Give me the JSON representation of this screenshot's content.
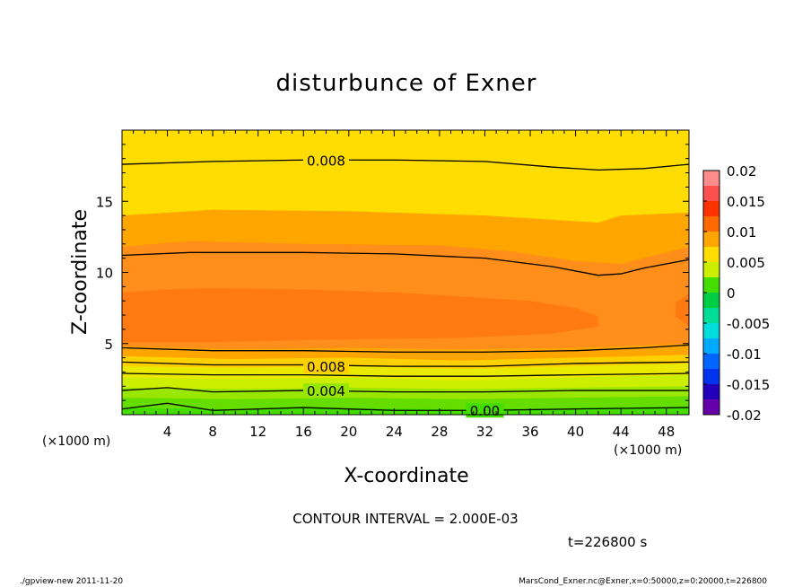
{
  "chart_data": {
    "type": "contour",
    "title": "disturbunce of Exner",
    "xlabel": "X-coordinate",
    "ylabel": "Z-coordinate",
    "x_unit": "(×1000 m)",
    "y_unit": "(×1000 m)",
    "xlim": [
      0,
      50
    ],
    "ylim": [
      0,
      20
    ],
    "x_ticks": [
      4,
      8,
      12,
      16,
      20,
      24,
      28,
      32,
      36,
      40,
      44,
      48
    ],
    "y_ticks": [
      5,
      10,
      15
    ],
    "contour_interval": "CONTOUR INTERVAL = 2.000E-03",
    "time_label": "t=226800 s",
    "colorbar": {
      "min": -0.02,
      "max": 0.02,
      "labels": [
        "0.02",
        "0.015",
        "0.01",
        "0.005",
        "0",
        "-0.005",
        "-0.01",
        "-0.015",
        "-0.02"
      ],
      "bands": [
        {
          "lo": 0.0175,
          "hi": 0.02,
          "color": "#ff8c8c"
        },
        {
          "lo": 0.015,
          "hi": 0.0175,
          "color": "#ff5050"
        },
        {
          "lo": 0.0125,
          "hi": 0.015,
          "color": "#ff3300"
        },
        {
          "lo": 0.01,
          "hi": 0.0125,
          "color": "#ff6a00"
        },
        {
          "lo": 0.0075,
          "hi": 0.01,
          "color": "#ffa500"
        },
        {
          "lo": 0.005,
          "hi": 0.0075,
          "color": "#ffdd00"
        },
        {
          "lo": 0.0025,
          "hi": 0.005,
          "color": "#ccee00"
        },
        {
          "lo": 0.0,
          "hi": 0.0025,
          "color": "#44dd00"
        },
        {
          "lo": -0.0025,
          "hi": 0.0,
          "color": "#00cc44"
        },
        {
          "lo": -0.005,
          "hi": -0.0025,
          "color": "#00dd99"
        },
        {
          "lo": -0.0075,
          "hi": -0.005,
          "color": "#00dddd"
        },
        {
          "lo": -0.01,
          "hi": -0.0075,
          "color": "#00aaff"
        },
        {
          "lo": -0.0125,
          "hi": -0.01,
          "color": "#0066ff"
        },
        {
          "lo": -0.015,
          "hi": -0.0125,
          "color": "#0033ee"
        },
        {
          "lo": -0.0175,
          "hi": -0.015,
          "color": "#2200bb"
        },
        {
          "lo": -0.02,
          "hi": -0.0175,
          "color": "#6600aa"
        }
      ]
    },
    "field_regions": [
      {
        "level": 0.0075,
        "color": "#ffa500",
        "top": [
          [
            0,
            14.0
          ],
          [
            8,
            14.4
          ],
          [
            20,
            14.3
          ],
          [
            32,
            14.0
          ],
          [
            42,
            13.5
          ],
          [
            44,
            14.0
          ],
          [
            50,
            14.2
          ]
        ],
        "bottom": [
          [
            0,
            4.1
          ],
          [
            10,
            3.9
          ],
          [
            20,
            4.0
          ],
          [
            30,
            3.8
          ],
          [
            40,
            4.0
          ],
          [
            50,
            4.2
          ]
        ]
      },
      {
        "level": 0.0095,
        "color": "#ff8e1a",
        "top": [
          [
            0,
            11.8
          ],
          [
            6,
            12.2
          ],
          [
            16,
            12.0
          ],
          [
            28,
            11.9
          ],
          [
            34,
            11.5
          ],
          [
            40,
            10.8
          ],
          [
            44,
            10.6
          ],
          [
            48,
            11.4
          ],
          [
            50,
            11.8
          ]
        ],
        "bottom": [
          [
            0,
            4.8
          ],
          [
            10,
            4.6
          ],
          [
            20,
            4.7
          ],
          [
            30,
            4.6
          ],
          [
            40,
            4.7
          ],
          [
            50,
            5.0
          ]
        ]
      },
      {
        "level": 0.0105,
        "color": "#ff7a10",
        "top": [
          [
            0,
            8.6
          ],
          [
            4,
            8.8
          ],
          [
            8,
            8.9
          ],
          [
            16,
            8.8
          ],
          [
            24,
            8.6
          ],
          [
            30,
            8.3
          ],
          [
            36,
            8.0
          ],
          [
            40,
            7.5
          ],
          [
            42,
            6.9
          ]
        ],
        "bottom": [
          [
            0,
            5.1
          ],
          [
            8,
            5.1
          ],
          [
            20,
            5.3
          ],
          [
            30,
            5.4
          ],
          [
            38,
            5.7
          ],
          [
            42,
            6.2
          ]
        ]
      },
      {
        "level": 0.0105,
        "color": "#ff7a10",
        "top": [
          [
            48.8,
            7.9
          ],
          [
            50,
            8.5
          ]
        ],
        "bottom": [
          [
            48.8,
            6.9
          ],
          [
            50,
            6.2
          ]
        ]
      },
      {
        "level": 0.006,
        "color": "#ffd000",
        "top": [
          [
            0,
            4.0
          ],
          [
            10,
            3.9
          ],
          [
            20,
            4.0
          ],
          [
            30,
            3.8
          ],
          [
            40,
            4.0
          ],
          [
            50,
            4.2
          ]
        ],
        "bottom": [
          [
            0,
            3.4
          ],
          [
            10,
            3.3
          ],
          [
            20,
            3.4
          ],
          [
            30,
            3.2
          ],
          [
            40,
            3.4
          ],
          [
            50,
            3.6
          ]
        ]
      },
      {
        "level": 0.005,
        "color": "#eaea00",
        "top": [
          [
            0,
            3.4
          ],
          [
            10,
            3.3
          ],
          [
            20,
            3.4
          ],
          [
            30,
            3.2
          ],
          [
            40,
            3.4
          ],
          [
            50,
            3.6
          ]
        ],
        "bottom": [
          [
            0,
            2.6
          ],
          [
            10,
            2.5
          ],
          [
            20,
            2.6
          ],
          [
            30,
            2.4
          ],
          [
            40,
            2.6
          ],
          [
            50,
            2.8
          ]
        ]
      },
      {
        "level": 0.004,
        "color": "#ccee00",
        "top": [
          [
            0,
            2.6
          ],
          [
            10,
            2.5
          ],
          [
            20,
            2.6
          ],
          [
            30,
            2.4
          ],
          [
            40,
            2.6
          ],
          [
            50,
            2.8
          ]
        ],
        "bottom": [
          [
            0,
            1.9
          ],
          [
            10,
            1.8
          ],
          [
            20,
            1.9
          ],
          [
            30,
            1.8
          ],
          [
            40,
            1.9
          ],
          [
            50,
            2.0
          ]
        ]
      },
      {
        "level": 0.003,
        "color": "#99e600",
        "top": [
          [
            0,
            1.9
          ],
          [
            10,
            1.8
          ],
          [
            20,
            1.9
          ],
          [
            30,
            1.8
          ],
          [
            40,
            1.9
          ],
          [
            50,
            2.0
          ]
        ],
        "bottom": [
          [
            0,
            1.2
          ],
          [
            10,
            1.1
          ],
          [
            20,
            1.2
          ],
          [
            30,
            1.1
          ],
          [
            40,
            1.2
          ],
          [
            50,
            1.3
          ]
        ]
      },
      {
        "level": 0.002,
        "color": "#66dd00",
        "top": [
          [
            0,
            1.2
          ],
          [
            10,
            1.1
          ],
          [
            20,
            1.2
          ],
          [
            30,
            1.1
          ],
          [
            40,
            1.2
          ],
          [
            50,
            1.3
          ]
        ],
        "bottom": [
          [
            0,
            0.5
          ],
          [
            10,
            0.4
          ],
          [
            20,
            0.5
          ],
          [
            30,
            0.4
          ],
          [
            40,
            0.5
          ],
          [
            50,
            0.6
          ]
        ]
      },
      {
        "level": 0.001,
        "color": "#44dd00",
        "top": [
          [
            0,
            0.5
          ],
          [
            10,
            0.4
          ],
          [
            20,
            0.5
          ],
          [
            30,
            0.4
          ],
          [
            40,
            0.5
          ],
          [
            50,
            0.6
          ]
        ],
        "bottom": [
          [
            0,
            0
          ],
          [
            50,
            0
          ]
        ]
      }
    ],
    "contour_lines": [
      {
        "value": 0.008,
        "points": [
          [
            0,
            17.6
          ],
          [
            8,
            17.8
          ],
          [
            16,
            17.9
          ],
          [
            24,
            17.9
          ],
          [
            32,
            17.8
          ],
          [
            38,
            17.4
          ],
          [
            42,
            17.2
          ],
          [
            46,
            17.3
          ],
          [
            50,
            17.6
          ]
        ]
      },
      {
        "value": 0.01,
        "points": [
          [
            0,
            11.2
          ],
          [
            6,
            11.4
          ],
          [
            16,
            11.4
          ],
          [
            24,
            11.3
          ],
          [
            32,
            11.0
          ],
          [
            38,
            10.4
          ],
          [
            42,
            9.8
          ],
          [
            44,
            9.9
          ],
          [
            46,
            10.3
          ],
          [
            50,
            10.9
          ]
        ]
      },
      {
        "value": 0.01,
        "points": [
          [
            0,
            4.7
          ],
          [
            8,
            4.5
          ],
          [
            16,
            4.5
          ],
          [
            24,
            4.4
          ],
          [
            32,
            4.4
          ],
          [
            40,
            4.5
          ],
          [
            46,
            4.7
          ],
          [
            50,
            4.9
          ]
        ]
      },
      {
        "value": 0.008,
        "points": [
          [
            0,
            3.7
          ],
          [
            8,
            3.5
          ],
          [
            16,
            3.5
          ],
          [
            24,
            3.4
          ],
          [
            32,
            3.4
          ],
          [
            40,
            3.6
          ],
          [
            50,
            3.7
          ]
        ]
      },
      {
        "value": 0.006,
        "points": [
          [
            0,
            2.9
          ],
          [
            8,
            2.8
          ],
          [
            16,
            2.8
          ],
          [
            24,
            2.7
          ],
          [
            32,
            2.7
          ],
          [
            40,
            2.8
          ],
          [
            50,
            2.9
          ]
        ]
      },
      {
        "value": 0.004,
        "points": [
          [
            0,
            1.7
          ],
          [
            4,
            1.9
          ],
          [
            8,
            1.6
          ],
          [
            16,
            1.7
          ],
          [
            24,
            1.6
          ],
          [
            32,
            1.6
          ],
          [
            40,
            1.7
          ],
          [
            50,
            1.7
          ]
        ]
      },
      {
        "value": 0.002,
        "points": [
          [
            0,
            0.4
          ],
          [
            4,
            0.8
          ],
          [
            8,
            0.3
          ],
          [
            16,
            0.5
          ],
          [
            24,
            0.3
          ],
          [
            32,
            0.3
          ],
          [
            40,
            0.4
          ],
          [
            50,
            0.5
          ]
        ]
      }
    ],
    "contour_labels": [
      {
        "text": "0.008",
        "x": 18,
        "y": 17.9
      },
      {
        "text": "0.008",
        "x": 18,
        "y": 3.4
      },
      {
        "text": "0.004",
        "x": 18,
        "y": 1.7
      },
      {
        "text": "0.00",
        "x": 32,
        "y": 0.3
      }
    ]
  },
  "footer": {
    "left": "./gpview-new   2011-11-20",
    "right": "MarsCond_Exner.nc@Exner,x=0:50000,z=0:20000,t=226800"
  }
}
